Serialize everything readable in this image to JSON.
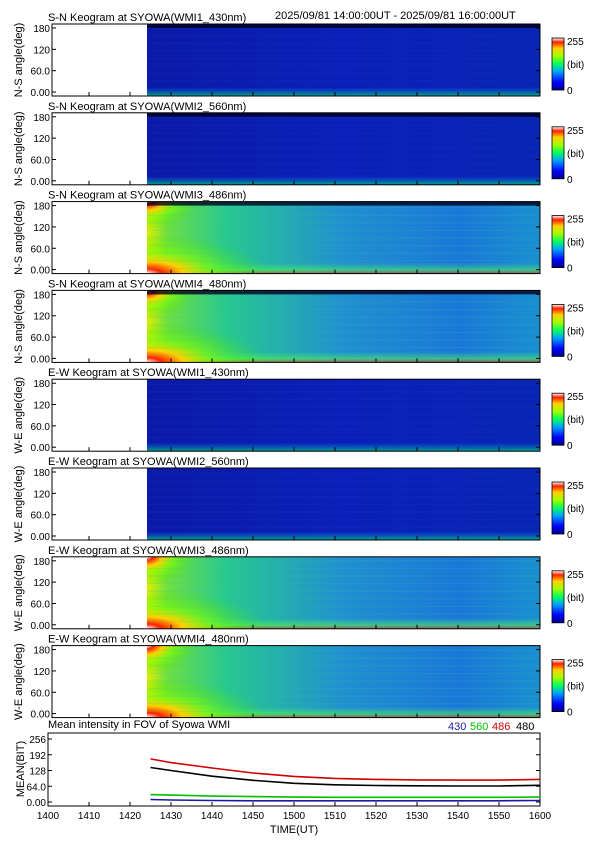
{
  "header": {
    "date_range": "2025/09/81 14:00:00UT - 2025/09/81 16:00:00UT"
  },
  "colorbar": {
    "max_label": "255",
    "unit_label": "(bit)",
    "min_label": "0"
  },
  "y_ticks": [
    "180",
    "120",
    "60.0",
    "0.00"
  ],
  "keograms": [
    {
      "title": "S-N Keogram at SYOWA(WMI1_430nm)",
      "ylabel": "N-S angle(deg)",
      "style": "blue"
    },
    {
      "title": "S-N Keogram at SYOWA(WMI2_560nm)",
      "ylabel": "N-S angle(deg)",
      "style": "blue"
    },
    {
      "title": "S-N Keogram at SYOWA(WMI3_486nm)",
      "ylabel": "N-S angle(deg)",
      "style": "green"
    },
    {
      "title": "S-N Keogram at SYOWA(WMI4_480nm)",
      "ylabel": "N-S angle(deg)",
      "style": "green"
    },
    {
      "title": "E-W Keogram at SYOWA(WMI1_430nm)",
      "ylabel": "W-E angle(deg)",
      "style": "blue"
    },
    {
      "title": "E-W Keogram at SYOWA(WMI2_560nm)",
      "ylabel": "W-E angle(deg)",
      "style": "blue"
    },
    {
      "title": "E-W Keogram at SYOWA(WMI3_486nm)",
      "ylabel": "W-E angle(deg)",
      "style": "green"
    },
    {
      "title": "E-W Keogram at SYOWA(WMI4_480nm)",
      "ylabel": "W-E angle(deg)",
      "style": "green"
    }
  ],
  "colors": {
    "c430": "#1a1aa8",
    "c560": "#00c000",
    "c486": "#d00000",
    "c480": "#000000"
  },
  "chart_data": {
    "type": "line",
    "title": "Mean intensity in FOV of Syowa WMI",
    "xlabel": "TIME(UT)",
    "ylabel": "MEAN(BIT)",
    "x_ticks": [
      "1400",
      "1410",
      "1420",
      "1430",
      "1440",
      "1450",
      "1500",
      "1510",
      "1520",
      "1530",
      "1540",
      "1550",
      "1600"
    ],
    "y_ticks": [
      "256",
      "192",
      "128",
      "64.0",
      "0.00"
    ],
    "ylim": [
      0,
      256
    ],
    "series": [
      {
        "name": "430",
        "x": [
          1425,
          1430,
          1440,
          1450,
          1500,
          1510,
          1520,
          1530,
          1540,
          1550,
          1600
        ],
        "y": [
          10,
          8,
          6,
          5,
          5,
          5,
          5,
          5,
          5,
          5,
          6
        ]
      },
      {
        "name": "560",
        "x": [
          1425,
          1430,
          1440,
          1450,
          1500,
          1510,
          1520,
          1530,
          1540,
          1550,
          1600
        ],
        "y": [
          30,
          28,
          24,
          22,
          20,
          19,
          19,
          19,
          19,
          19,
          20
        ]
      },
      {
        "name": "486",
        "x": [
          1425,
          1430,
          1440,
          1450,
          1500,
          1510,
          1520,
          1530,
          1540,
          1550,
          1600
        ],
        "y": [
          175,
          160,
          138,
          118,
          104,
          96,
          92,
          90,
          89,
          89,
          92
        ]
      },
      {
        "name": "480",
        "x": [
          1425,
          1430,
          1440,
          1450,
          1500,
          1510,
          1520,
          1530,
          1540,
          1550,
          1600
        ],
        "y": [
          140,
          128,
          105,
          88,
          76,
          70,
          67,
          66,
          65,
          65,
          68
        ]
      }
    ]
  }
}
